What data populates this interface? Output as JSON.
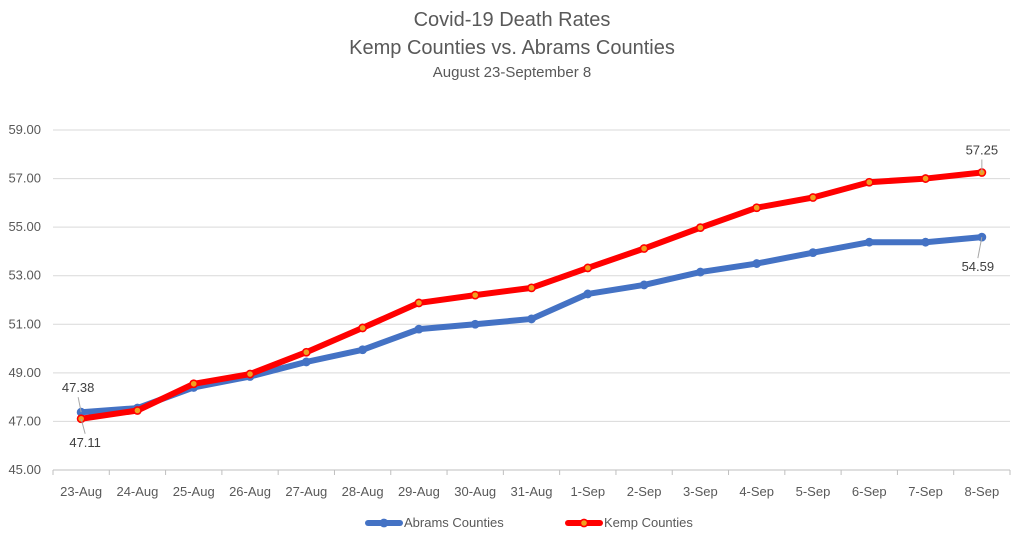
{
  "chart_data": {
    "type": "line",
    "title": "Covid-19 Death Rates",
    "title_line2": "Kemp Counties vs. Abrams Counties",
    "subtitle": "August 23-September 8",
    "xlabel": "",
    "ylabel": "",
    "categories": [
      "23-Aug",
      "24-Aug",
      "25-Aug",
      "26-Aug",
      "27-Aug",
      "28-Aug",
      "29-Aug",
      "30-Aug",
      "31-Aug",
      "1-Sep",
      "2-Sep",
      "3-Sep",
      "4-Sep",
      "5-Sep",
      "6-Sep",
      "7-Sep",
      "8-Sep"
    ],
    "ylim": [
      45,
      59
    ],
    "yticks": [
      "45.00",
      "47.00",
      "49.00",
      "51.00",
      "53.00",
      "55.00",
      "57.00",
      "59.00"
    ],
    "grid": true,
    "legend_position": "bottom",
    "series": [
      {
        "name": "Abrams Counties",
        "color": "#4472C4",
        "values": [
          47.38,
          47.55,
          48.4,
          48.85,
          49.45,
          49.95,
          50.8,
          51.0,
          51.22,
          52.25,
          52.62,
          53.15,
          53.5,
          53.95,
          54.38,
          54.38,
          54.59
        ]
      },
      {
        "name": "Kemp Counties",
        "color": "#FF0000",
        "values": [
          47.11,
          47.45,
          48.55,
          48.95,
          49.85,
          50.85,
          51.88,
          52.2,
          52.5,
          53.32,
          54.12,
          54.98,
          55.8,
          56.22,
          56.85,
          57.0,
          57.25
        ]
      }
    ],
    "data_labels": [
      {
        "series": 0,
        "index": 0,
        "text": "47.38"
      },
      {
        "series": 1,
        "index": 0,
        "text": "47.11"
      },
      {
        "series": 1,
        "index": 16,
        "text": "57.25"
      },
      {
        "series": 0,
        "index": 16,
        "text": "54.59"
      }
    ]
  }
}
